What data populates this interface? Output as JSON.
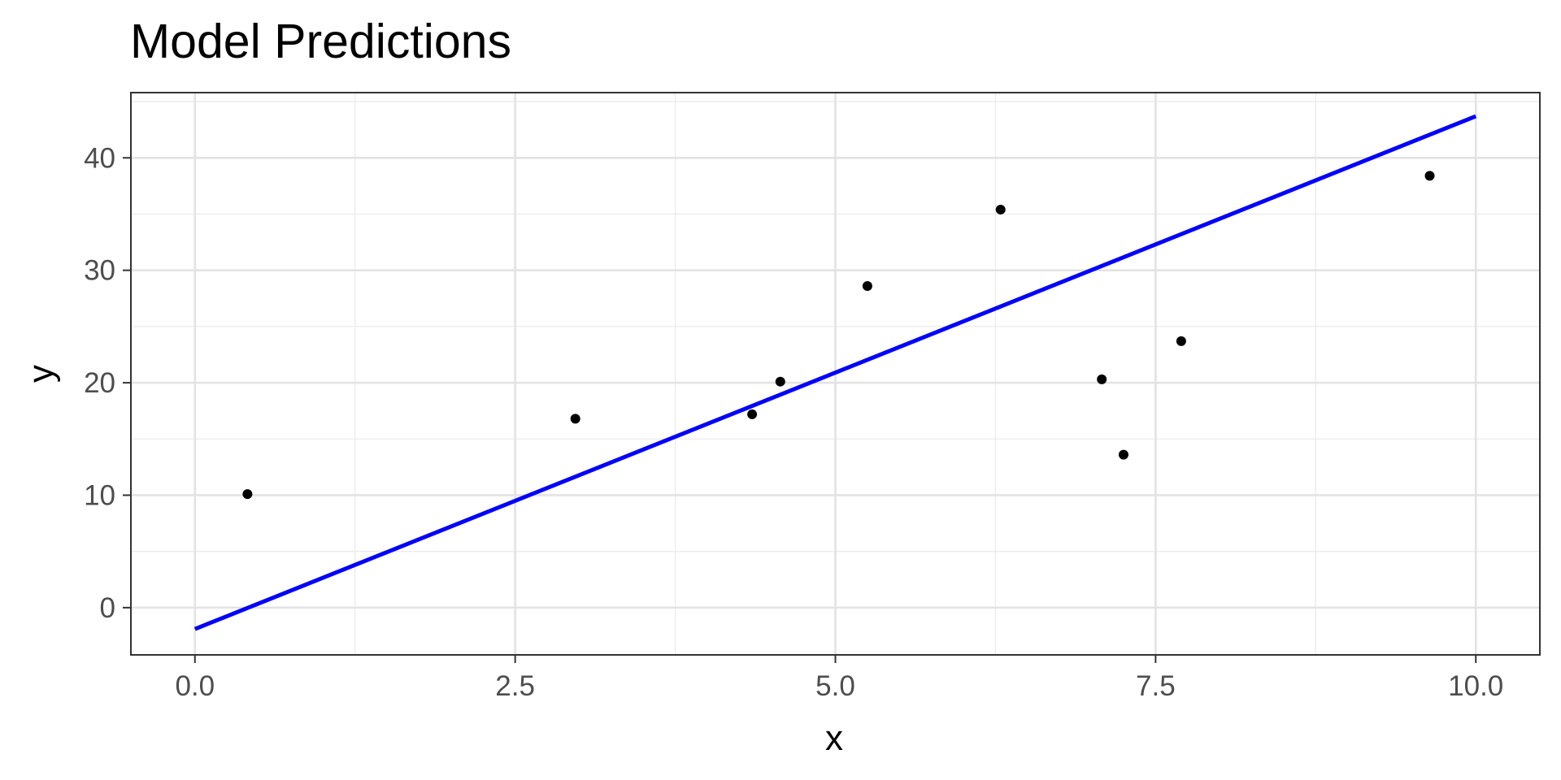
{
  "chart_data": {
    "type": "scatter",
    "title": "Model Predictions",
    "xlabel": "x",
    "ylabel": "y",
    "xlim": [
      -0.5,
      10.5
    ],
    "ylim": [
      -4.2,
      45.8
    ],
    "x_ticks": [
      0,
      2.5,
      5,
      7.5,
      10
    ],
    "x_tick_labels": [
      "0.0",
      "2.5",
      "5.0",
      "7.5",
      "10.0"
    ],
    "y_ticks": [
      0,
      10,
      20,
      30,
      40
    ],
    "y_tick_labels": [
      "0",
      "10",
      "20",
      "30",
      "40"
    ],
    "grid": true,
    "legend": "none",
    "series": [
      {
        "type": "scatter",
        "color": "#000000",
        "points": [
          {
            "x": 0.41,
            "y": 10.1
          },
          {
            "x": 2.97,
            "y": 16.8
          },
          {
            "x": 4.35,
            "y": 17.2
          },
          {
            "x": 4.57,
            "y": 20.1
          },
          {
            "x": 5.25,
            "y": 28.6
          },
          {
            "x": 6.29,
            "y": 35.4
          },
          {
            "x": 7.08,
            "y": 20.3
          },
          {
            "x": 7.25,
            "y": 13.6
          },
          {
            "x": 7.7,
            "y": 23.7
          },
          {
            "x": 9.64,
            "y": 38.4
          }
        ]
      },
      {
        "type": "line",
        "color": "#0000ff",
        "points": [
          {
            "x": 0,
            "y": -1.9
          },
          {
            "x": 10,
            "y": 43.7
          }
        ]
      }
    ]
  }
}
